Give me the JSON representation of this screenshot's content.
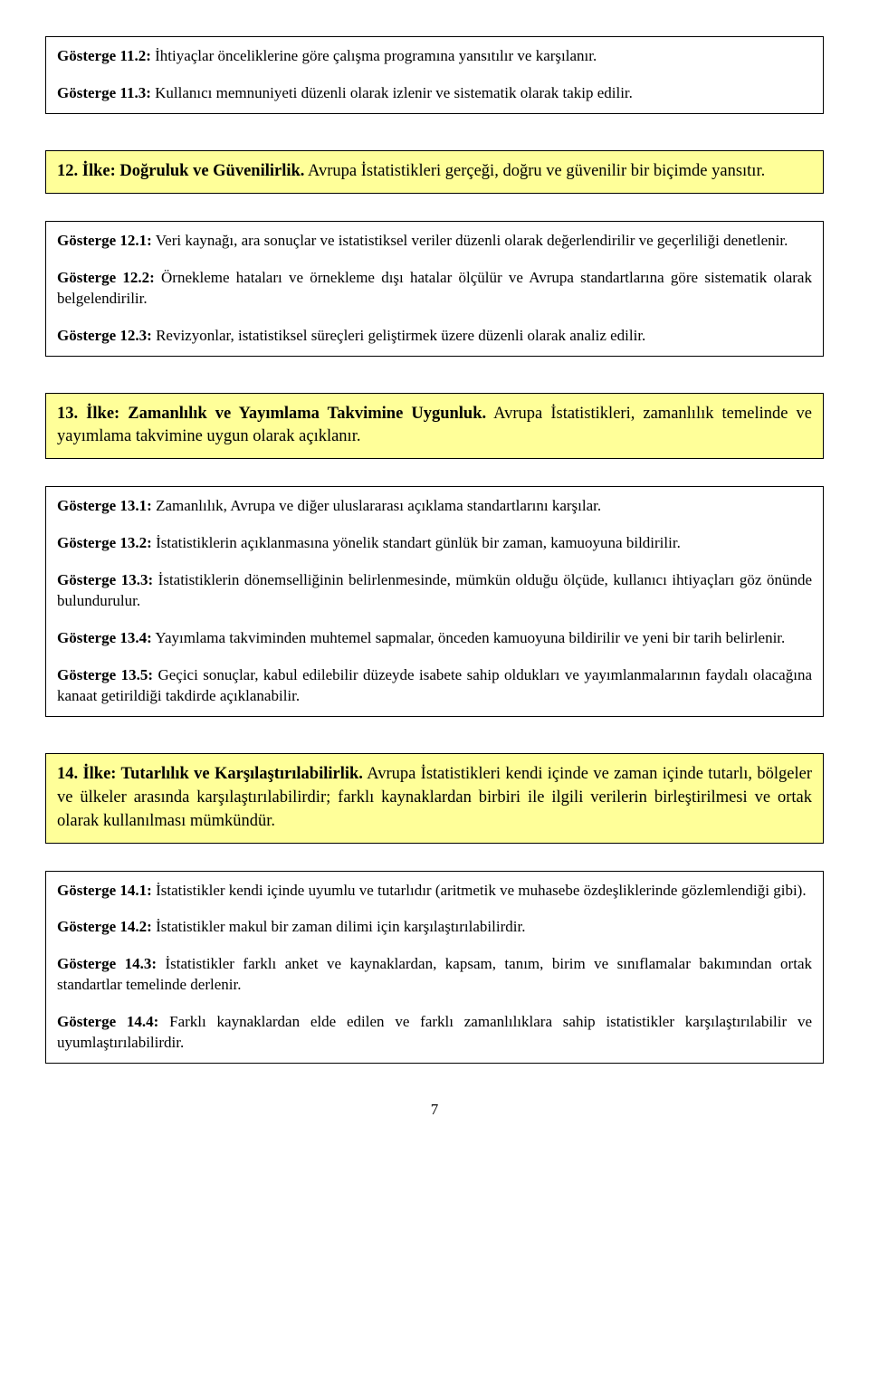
{
  "colors": {
    "header_bg": "#ffff99",
    "border": "#000000",
    "text": "#000000",
    "page_bg": "#ffffff"
  },
  "typography": {
    "body_font": "Times New Roman",
    "body_size_pt": 13,
    "header_size_pt": 14
  },
  "box1": {
    "items": [
      {
        "label": "Gösterge 11.2:",
        "text": " İhtiyaçlar önceliklerine göre çalışma programına yansıtılır ve karşılanır."
      },
      {
        "label": "Gösterge 11.3:",
        "text": " Kullanıcı memnuniyeti düzenli olarak izlenir ve sistematik olarak takip edilir."
      }
    ]
  },
  "box2": {
    "header_title": "12. İlke: Doğruluk ve Güvenilirlik.",
    "header_rest": " Avrupa İstatistikleri gerçeği, doğru ve güvenilir bir biçimde yansıtır.",
    "items": [
      {
        "label": "Gösterge 12.1:",
        "text": " Veri kaynağı, ara sonuçlar ve istatistiksel veriler düzenli olarak değerlendirilir ve geçerliliği denetlenir."
      },
      {
        "label": "Gösterge 12.2:",
        "text": " Örnekleme hataları ve örnekleme dışı hatalar ölçülür ve Avrupa standartlarına göre sistematik olarak belgelendirilir."
      },
      {
        "label": "Gösterge 12.3:",
        "text": " Revizyonlar, istatistiksel süreçleri geliştirmek üzere düzenli olarak analiz edilir."
      }
    ]
  },
  "box3": {
    "header_title": "13. İlke: Zamanlılık ve Yayımlama Takvimine Uygunluk.",
    "header_rest": " Avrupa İstatistikleri, zamanlılık temelinde ve yayımlama takvimine uygun olarak açıklanır.",
    "items": [
      {
        "label": "Gösterge 13.1:",
        "text": " Zamanlılık, Avrupa ve diğer uluslararası açıklama standartlarını karşılar."
      },
      {
        "label": "Gösterge 13.2:",
        "text": " İstatistiklerin açıklanmasına yönelik standart günlük bir zaman, kamuoyuna bildirilir."
      },
      {
        "label": "Gösterge 13.3:",
        "text": " İstatistiklerin dönemselliğinin belirlenmesinde, mümkün olduğu ölçüde, kullanıcı ihtiyaçları göz önünde bulundurulur."
      },
      {
        "label": "Gösterge 13.4:",
        "text": " Yayımlama takviminden muhtemel sapmalar, önceden kamuoyuna bildirilir ve yeni bir tarih belirlenir."
      },
      {
        "label": "Gösterge 13.5:",
        "text": " Geçici sonuçlar, kabul edilebilir düzeyde isabete sahip oldukları ve yayımlanmalarının faydalı olacağına kanaat getirildiği takdirde açıklanabilir."
      }
    ]
  },
  "box4": {
    "header_title": "14. İlke: Tutarlılık ve Karşılaştırılabilirlik.",
    "header_rest": " Avrupa İstatistikleri kendi içinde ve zaman içinde tutarlı, bölgeler ve ülkeler arasında karşılaştırılabilirdir; farklı kaynaklardan birbiri ile ilgili verilerin birleştirilmesi ve ortak olarak kullanılması mümkündür.",
    "items": [
      {
        "label": "Gösterge 14.1:",
        "text": " İstatistikler kendi içinde uyumlu ve tutarlıdır (aritmetik ve muhasebe özdeşliklerinde gözlemlendiği gibi)."
      },
      {
        "label": "Gösterge 14.2:",
        "text": " İstatistikler makul bir zaman dilimi için karşılaştırılabilirdir."
      },
      {
        "label": "Gösterge 14.3:",
        "text": " İstatistikler farklı anket ve kaynaklardan, kapsam, tanım, birim ve sınıflamalar bakımından ortak standartlar temelinde derlenir."
      },
      {
        "label": "Gösterge 14.4:",
        "text": " Farklı kaynaklardan elde edilen ve farklı zamanlılıklara sahip istatistikler karşılaştırılabilir ve uyumlaştırılabilirdir."
      }
    ]
  },
  "page_number": "7"
}
